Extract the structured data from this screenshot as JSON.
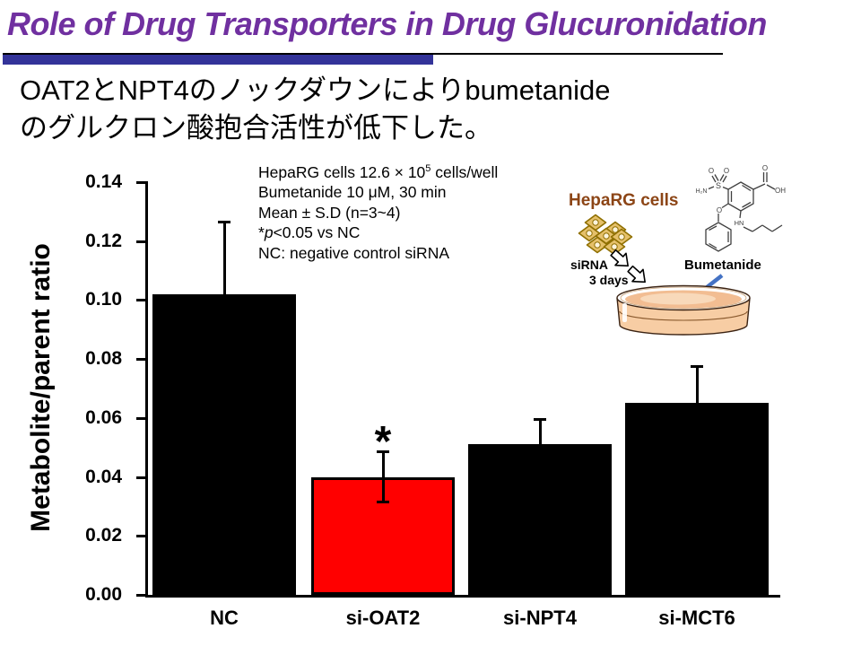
{
  "slide": {
    "title": "Role of Drug Transporters in Drug Glucuronidation",
    "headline": {
      "line1": "OAT2とNPT4のノックダウンによりbumetanide",
      "line2": "のグルクロン酸抱合活性が低下した。"
    }
  },
  "colors": {
    "title": "#7030A0",
    "accent_bar": "#333399",
    "highlight_bar": "#FF0000",
    "default_bar": "#000000",
    "heparg_label": "#8C4516",
    "bumetanide_arrow": "#4472C4"
  },
  "annotation": {
    "line1_pre": "HepaRG cells 12.6 × 10",
    "line1_sup": "5",
    "line1_post": " cells/well",
    "line2": "Bumetanide 10 μM, 30 min",
    "line3": "Mean ± S.D (n=3~4)",
    "line4_star": "*",
    "line4_p": "p",
    "line4_rest": "<0.05 vs NC",
    "line5": "NC: negative control siRNA"
  },
  "chart_data": {
    "type": "bar",
    "title": "",
    "ylabel": "Metabolite/parent ratio",
    "xlabel": "",
    "ylim": [
      0,
      0.14
    ],
    "ytick_step": 0.02,
    "yticks": [
      "0.00",
      "0.02",
      "0.04",
      "0.06",
      "0.08",
      "0.10",
      "0.12",
      "0.14"
    ],
    "categories": [
      "NC",
      "si-OAT2",
      "si-NPT4",
      "si-MCT6"
    ],
    "values": [
      0.102,
      0.04,
      0.051,
      0.065
    ],
    "errors_upper": [
      0.025,
      0.009,
      0.009,
      0.013
    ],
    "errors_lower": [
      0,
      0.009,
      0,
      0
    ],
    "bar_colors": [
      "#000000",
      "#FF0000",
      "#000000",
      "#000000"
    ],
    "significance": [
      "",
      "*",
      "",
      ""
    ],
    "grid": false,
    "legend": "none"
  },
  "illustration": {
    "heparg_label": "HepaRG cells",
    "sirna_label": "siRNA",
    "days_label": "3 days",
    "bumetanide_label": "Bumetanide"
  }
}
